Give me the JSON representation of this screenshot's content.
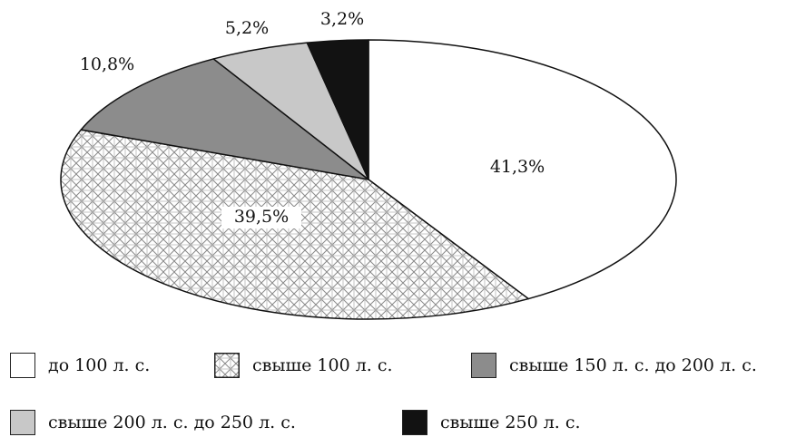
{
  "chart_data": {
    "type": "pie",
    "slices": [
      {
        "label": "до 100 л. с.",
        "value": 41.3,
        "value_label": "41,3%",
        "fill": "#ffffff",
        "pattern": "none"
      },
      {
        "label": "свыше 100 л. с.",
        "value": 39.5,
        "value_label": "39,5%",
        "fill": "#d0d0d0",
        "pattern": "crosshatch"
      },
      {
        "label": "свыше 150 л. с. до 200 л. с.",
        "value": 10.8,
        "value_label": "10,8%",
        "fill": "#8c8c8c",
        "pattern": "none"
      },
      {
        "label": "свыше 200 л. с. до 250 л. с.",
        "value": 5.2,
        "value_label": "5,2%",
        "fill": "#c8c8c8",
        "pattern": "none"
      },
      {
        "label": "свыше 250 л. с.",
        "value": 3.2,
        "value_label": "3,2%",
        "fill": "#121212",
        "pattern": "none"
      }
    ],
    "start": "12 o'clock",
    "direction": "clockwise",
    "legend_position": "bottom"
  }
}
